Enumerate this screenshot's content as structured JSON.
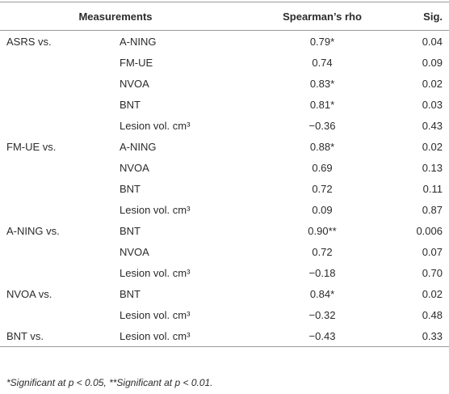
{
  "table": {
    "header": [
      "Measurements",
      "Spearman’s rho",
      "Sig."
    ],
    "groups": [
      {
        "label": "ASRS vs.",
        "rows": [
          [
            "A-NING",
            "0.79*",
            "0.04"
          ],
          [
            "FM-UE",
            "0.74",
            "0.09"
          ],
          [
            "NVOA",
            "0.83*",
            "0.02"
          ],
          [
            "BNT",
            "0.81*",
            "0.03"
          ],
          [
            "Lesion vol. cm³",
            "−0.36",
            "0.43"
          ]
        ]
      },
      {
        "label": "FM-UE vs.",
        "rows": [
          [
            "A-NING",
            "0.88*",
            "0.02"
          ],
          [
            "NVOA",
            "0.69",
            "0.13"
          ],
          [
            "BNT",
            "0.72",
            "0.11"
          ],
          [
            "Lesion vol. cm³",
            "0.09",
            "0.87"
          ]
        ]
      },
      {
        "label": "A-NING vs.",
        "rows": [
          [
            "BNT",
            "0.90**",
            "0.006"
          ],
          [
            "NVOA",
            "0.72",
            "0.07"
          ],
          [
            "Lesion vol. cm³",
            "−0.18",
            "0.70"
          ]
        ]
      },
      {
        "label": "NVOA vs.",
        "rows": [
          [
            "BNT",
            "0.84*",
            "0.02"
          ],
          [
            "Lesion vol. cm³",
            "−0.32",
            "0.48"
          ]
        ]
      },
      {
        "label": "BNT vs.",
        "rows": [
          [
            "Lesion vol. cm³",
            "−0.43",
            "0.33"
          ]
        ]
      }
    ]
  },
  "footnote": "*Significant at p < 0.05, **Significant at p < 0.01."
}
